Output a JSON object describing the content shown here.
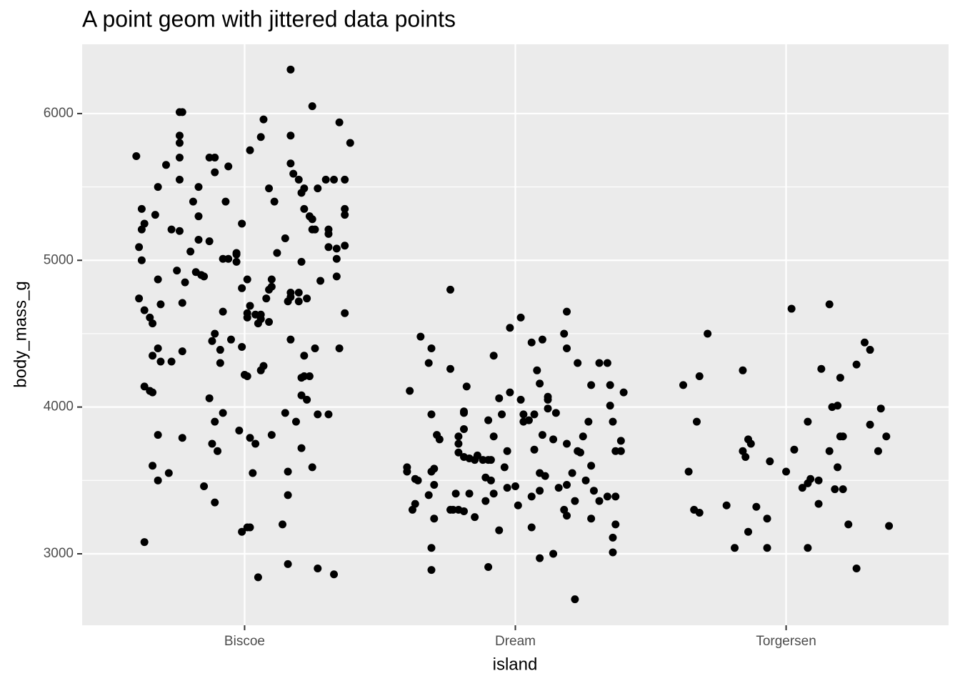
{
  "chart_data": {
    "type": "scatter",
    "title": "A point geom with jittered data points",
    "x_label": "island",
    "y_label": "body_mass_g",
    "color": "#000000",
    "grid": true,
    "xlim": [
      0.4,
      3.6
    ],
    "ylim": [
      2513,
      6472
    ],
    "xticks": [
      {
        "value": 1,
        "label": "Biscoe"
      },
      {
        "value": 2,
        "label": "Dream"
      },
      {
        "value": 3,
        "label": "Torgersen"
      }
    ],
    "yticks": [
      3000,
      4000,
      5000,
      6000
    ],
    "x": [
      0.6,
      0.76,
      0.77,
      1.17,
      1.25,
      1.35,
      1.39,
      0.76,
      0.76,
      0.76,
      1.02,
      1.07,
      1.06,
      1.17,
      0.71,
      0.68,
      0.62,
      0.63,
      0.61,
      0.62,
      0.67,
      0.73,
      0.76,
      0.76,
      0.83,
      0.81,
      0.83,
      0.83,
      0.87,
      0.89,
      0.89,
      0.94,
      0.93,
      0.99,
      1.09,
      1.11,
      1.17,
      1.18,
      1.2,
      1.21,
      1.22,
      1.24,
      1.27,
      1.25,
      1.3,
      1.33,
      1.37,
      1.31,
      1.31,
      1.34,
      1.37,
      1.37,
      1.37,
      0.62,
      0.61,
      0.63,
      0.65,
      0.68,
      0.69,
      0.75,
      0.77,
      0.78,
      0.82,
      0.8,
      0.84,
      0.85,
      0.87,
      0.92,
      0.94,
      0.97,
      0.97,
      0.97,
      0.99,
      1.01,
      1.02,
      1.01,
      1.01,
      1.04,
      1.06,
      1.05,
      1.06,
      1.09,
      1.08,
      1.09,
      1.1,
      1.1,
      1.12,
      1.15,
      1.16,
      1.17,
      1.17,
      1.2,
      1.2,
      1.23,
      1.21,
      1.22,
      1.25,
      1.26,
      1.28,
      1.31,
      1.34,
      1.34,
      1.35,
      1.37,
      0.66,
      0.68,
      0.66,
      0.69,
      0.73,
      0.63,
      0.65,
      0.66,
      0.77,
      0.92,
      0.89,
      0.88,
      0.95,
      0.91,
      0.99,
      1.0,
      0.91,
      1.01,
      1.06,
      1.07,
      1.17,
      1.22,
      1.22,
      1.24,
      1.26,
      0.87,
      0.89,
      0.92,
      1.21,
      1.21,
      1.23,
      1.27,
      1.31,
      1.19,
      0.68,
      0.77,
      0.88,
      0.9,
      0.98,
      1.02,
      1.04,
      1.1,
      1.15,
      1.21,
      1.25,
      0.66,
      0.72,
      0.68,
      0.85,
      0.89,
      1.03,
      1.16,
      1.16,
      1.14,
      0.99,
      1.01,
      1.02,
      0.63,
      1.05,
      1.16,
      1.27,
      1.33,
      1.76,
      1.65,
      1.69,
      1.68,
      1.61,
      1.76,
      1.82,
      1.92,
      1.98,
      2.02,
      2.06,
      2.1,
      2.19,
      2.18,
      2.19,
      2.08,
      2.09,
      2.12,
      2.12,
      2.15,
      2.23,
      2.31,
      2.34,
      2.28,
      2.35,
      2.35,
      2.36,
      2.4,
      2.39,
      2.37,
      2.39,
      1.94,
      1.98,
      2.02,
      2.03,
      2.03,
      2.05,
      2.07,
      2.12,
      2.07,
      1.97,
      1.95,
      1.9,
      1.92,
      1.81,
      1.81,
      1.81,
      1.79,
      1.79,
      1.79,
      1.81,
      1.83,
      1.86,
      1.85,
      1.88,
      1.9,
      1.91,
      1.69,
      1.71,
      1.72,
      2.1,
      2.14,
      2.19,
      2.23,
      2.24,
      2.25,
      2.27,
      2.28,
      1.7,
      1.69,
      1.6,
      1.6,
      1.63,
      1.64,
      1.7,
      1.68,
      1.63,
      1.62,
      1.7,
      1.78,
      1.83,
      1.89,
      1.91,
      1.96,
      1.97,
      1.92,
      2.0,
      2.06,
      2.09,
      2.09,
      2.11,
      2.16,
      2.19,
      2.21,
      2.26,
      2.29,
      2.34,
      2.37,
      2.31,
      2.22,
      2.18,
      2.19,
      2.01,
      2.06,
      1.85,
      1.77,
      1.79,
      1.81,
      1.89,
      2.37,
      2.36,
      2.36,
      2.28,
      1.69,
      2.09,
      2.14,
      1.9,
      1.69,
      2.22,
      1.94,
      1.76,
      2.71,
      2.62,
      2.68,
      2.67,
      2.64,
      2.66,
      2.68,
      2.78,
      2.81,
      2.86,
      2.84,
      2.84,
      2.85,
      2.86,
      2.87,
      2.89,
      2.93,
      2.93,
      2.94,
      3.0,
      3.02,
      3.03,
      3.08,
      3.08,
      3.09,
      3.08,
      3.06,
      3.12,
      3.12,
      3.13,
      3.16,
      3.17,
      3.19,
      3.16,
      3.19,
      3.18,
      3.21,
      3.2,
      3.21,
      3.2,
      3.23,
      3.26,
      3.29,
      3.31,
      3.31,
      3.35,
      3.34,
      3.37,
      3.38,
      3.26
    ],
    "values": [
      5710,
      6010,
      6010,
      6300,
      6050,
      5940,
      5800,
      5850,
      5800,
      5700,
      5750,
      5960,
      5840,
      5850,
      5650,
      5500,
      5350,
      5250,
      5090,
      5000,
      5310,
      5210,
      5200,
      5550,
      5500,
      5400,
      5300,
      5140,
      5700,
      5700,
      5600,
      5640,
      5400,
      5250,
      5490,
      5400,
      5660,
      5590,
      5550,
      5460,
      5490,
      5300,
      5490,
      5210,
      5550,
      5550,
      5550,
      5210,
      5180,
      5080,
      5350,
      5310,
      5100,
      5210,
      4740,
      4660,
      4610,
      4870,
      4700,
      4930,
      4710,
      4850,
      4920,
      5060,
      4900,
      4890,
      5130,
      5010,
      5010,
      5050,
      5040,
      4990,
      4810,
      4870,
      4690,
      4640,
      4610,
      4630,
      4630,
      4570,
      4600,
      4800,
      4740,
      4580,
      4870,
      4820,
      5050,
      5150,
      4720,
      4780,
      4750,
      4780,
      4720,
      4740,
      4990,
      5350,
      5280,
      5210,
      4860,
      5090,
      5010,
      4890,
      4400,
      4640,
      4570,
      4400,
      4350,
      4310,
      4310,
      4140,
      4110,
      4100,
      4380,
      4650,
      4500,
      4450,
      4460,
      4390,
      4410,
      4220,
      4300,
      4210,
      4250,
      4280,
      4460,
      4350,
      4210,
      4210,
      4400,
      4060,
      3900,
      3960,
      4080,
      4200,
      4050,
      3950,
      3950,
      3900,
      3810,
      3790,
      3750,
      3700,
      3840,
      3790,
      3750,
      3810,
      3960,
      3720,
      3590,
      3600,
      3550,
      3500,
      3460,
      3350,
      3550,
      3560,
      3400,
      3200,
      3150,
      3180,
      3180,
      3080,
      2840,
      2930,
      2900,
      2860,
      4800,
      4480,
      4400,
      4300,
      4110,
      4260,
      4140,
      4350,
      4540,
      4610,
      4440,
      4460,
      4650,
      4500,
      4400,
      4250,
      4160,
      4070,
      4050,
      3960,
      4300,
      4300,
      4300,
      4150,
      4150,
      4010,
      3900,
      4100,
      3770,
      3700,
      3700,
      4060,
      4100,
      4050,
      3950,
      3900,
      3910,
      3950,
      3990,
      3710,
      3700,
      3950,
      3910,
      3800,
      3970,
      3960,
      3850,
      3800,
      3750,
      3690,
      3660,
      3650,
      3670,
      3640,
      3640,
      3640,
      3640,
      3950,
      3810,
      3780,
      3810,
      3780,
      3750,
      3700,
      3690,
      3800,
      3900,
      3600,
      3580,
      3560,
      3590,
      3560,
      3510,
      3500,
      3470,
      3400,
      3340,
      3300,
      3240,
      3410,
      3410,
      3520,
      3500,
      3590,
      3450,
      3410,
      3460,
      3390,
      3430,
      3550,
      3530,
      3450,
      3470,
      3550,
      3500,
      3430,
      3390,
      3390,
      3360,
      3360,
      3300,
      3260,
      3330,
      3180,
      3250,
      3300,
      3300,
      3290,
      3360,
      3200,
      3110,
      3010,
      3240,
      3040,
      2970,
      3000,
      2910,
      2890,
      2690,
      3160,
      3300,
      4500,
      4150,
      4210,
      3900,
      3560,
      3300,
      3280,
      3330,
      3040,
      3150,
      4250,
      3700,
      3660,
      3780,
      3750,
      3320,
      3240,
      3040,
      3630,
      3560,
      4670,
      3710,
      3900,
      3040,
      3510,
      3480,
      3450,
      3500,
      3340,
      4260,
      4700,
      4000,
      4010,
      3700,
      3590,
      3440,
      3440,
      4200,
      3800,
      3800,
      3200,
      4290,
      4440,
      4390,
      3880,
      3990,
      3700,
      3800,
      3190,
      2900
    ]
  }
}
